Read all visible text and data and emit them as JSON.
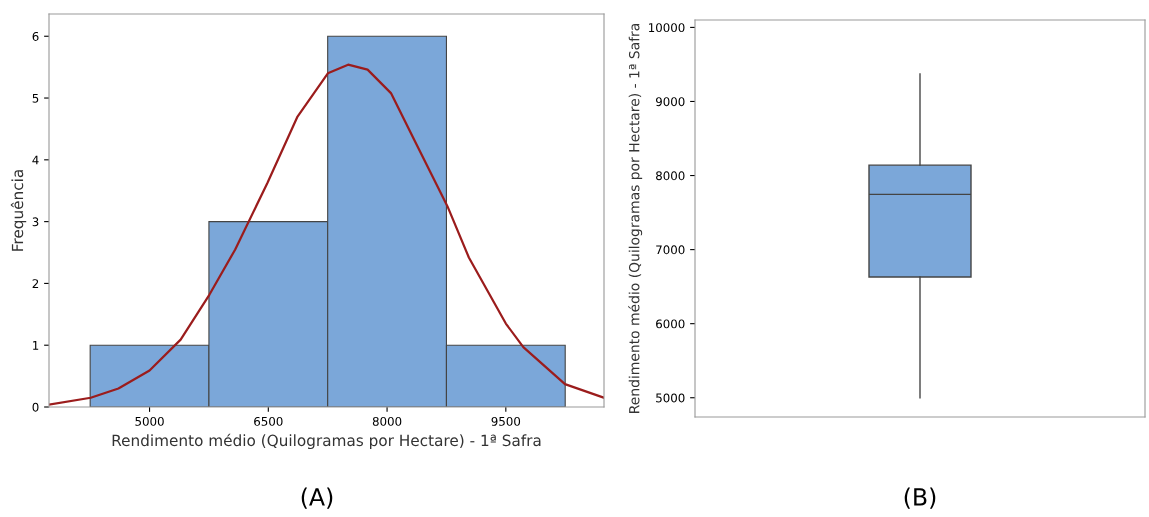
{
  "chart_data": [
    {
      "type": "histogram",
      "xlabel": "Rendimento médio (Quilogramas por Hectare) - 1ª Safra",
      "ylabel": "Frequência",
      "bins": [
        4250,
        5750,
        7250,
        8750,
        10250
      ],
      "values": [
        1,
        3,
        6,
        1
      ],
      "color": "#7ba7d9",
      "series": [
        {
          "type": "line",
          "color": "#9b1c1c",
          "x": [
            3730,
            4257,
            4607,
            5000,
            5393,
            5757,
            6082,
            6490,
            6869,
            7252,
            7508,
            7754,
            8049,
            8344,
            8762,
            9033,
            9500,
            9721,
            10247,
            10740
          ],
          "values": [
            0.04,
            0.15,
            0.3,
            0.59,
            1.09,
            1.82,
            2.55,
            3.63,
            4.7,
            5.4,
            5.54,
            5.46,
            5.08,
            4.32,
            3.25,
            2.42,
            1.35,
            0.97,
            0.37,
            0.15
          ]
        }
      ],
      "xlim": [
        3730,
        10740
      ],
      "xticks": [
        5000,
        6500,
        8000,
        9500
      ],
      "ylim": [
        0,
        6.36
      ],
      "yticks": [
        0,
        1,
        2,
        3,
        4,
        5,
        6
      ],
      "grid": false,
      "annotations": [
        "(A)"
      ]
    },
    {
      "type": "box",
      "ylabel": "Rendimento médio (Quilogramas por Hectare) - 1ª Safra",
      "categories": [
        null
      ],
      "color": "#7ba7d9",
      "boxes": [
        {
          "low": 5000,
          "q1": 6630,
          "median": 7745,
          "q3": 8140,
          "high": 9370
        }
      ],
      "ylim": [
        4740,
        10100
      ],
      "yticks": [
        5000,
        6000,
        7000,
        8000,
        9000,
        10000
      ],
      "grid": false,
      "annotations": [
        "(B)"
      ]
    }
  ]
}
